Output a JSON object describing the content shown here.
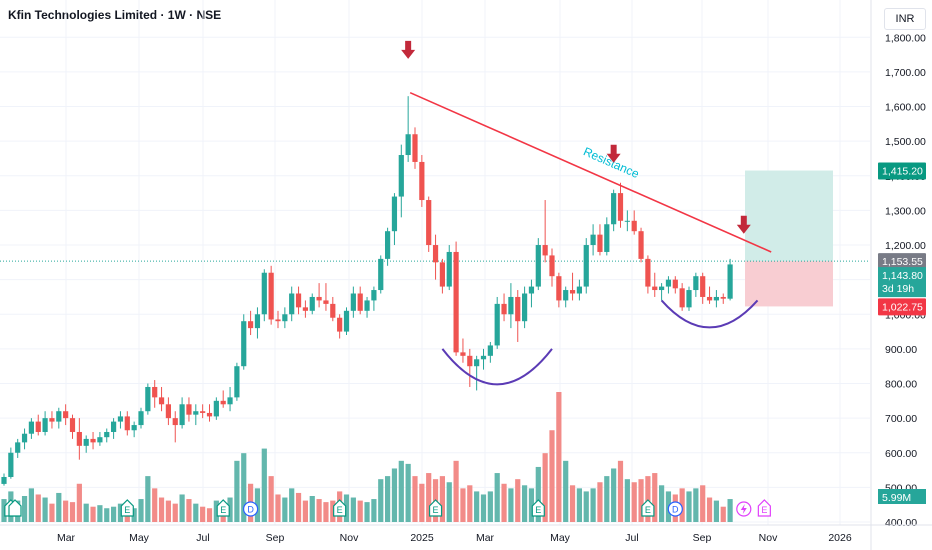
{
  "header": {
    "title": "Kfin Technologies Limited · 1W · NSE",
    "currency": "INR"
  },
  "colors": {
    "up": "#26a69a",
    "down": "#ef5350",
    "vol_up": "#63b7ad",
    "vol_down": "#f28b88",
    "resistance": "#f23645",
    "resistance_label": "#00bcd4",
    "cup": "#5b3bb5",
    "arrow": "#c2293a",
    "target_zone": "#d1ece8",
    "stop_zone": "#f8cdd2"
  },
  "chart_data": {
    "type": "candlestick",
    "interval": "1W",
    "ylim": [
      400,
      1850
    ],
    "x_tick_labels": [
      "Mar",
      "May",
      "Jul",
      "Sep",
      "Nov",
      "2025",
      "Mar",
      "May",
      "Jul",
      "Sep",
      "Nov",
      "2026"
    ],
    "y_tick_labels": [
      "1,800.00",
      "1,700.00",
      "1,600.00",
      "1,500.00",
      "1,400.00",
      "1,300.00",
      "1,200.00",
      "1,100.00",
      "1,000.00",
      "900.00",
      "800.00",
      "700.00",
      "600.00",
      "500.00",
      "400.00"
    ],
    "candles": [
      [
        510,
        540,
        505,
        530,
        15
      ],
      [
        530,
        615,
        525,
        600,
        20
      ],
      [
        600,
        640,
        585,
        630,
        14
      ],
      [
        630,
        670,
        610,
        655,
        17
      ],
      [
        655,
        700,
        640,
        690,
        22
      ],
      [
        690,
        710,
        650,
        660,
        18
      ],
      [
        660,
        720,
        650,
        700,
        16
      ],
      [
        700,
        720,
        670,
        690,
        12
      ],
      [
        690,
        730,
        670,
        720,
        19
      ],
      [
        720,
        740,
        680,
        700,
        14
      ],
      [
        700,
        710,
        640,
        660,
        13
      ],
      [
        660,
        700,
        580,
        620,
        25
      ],
      [
        620,
        650,
        600,
        640,
        12
      ],
      [
        640,
        660,
        610,
        630,
        10
      ],
      [
        630,
        660,
        620,
        645,
        11
      ],
      [
        645,
        670,
        630,
        660,
        9
      ],
      [
        660,
        700,
        640,
        690,
        10
      ],
      [
        690,
        720,
        670,
        705,
        12
      ],
      [
        705,
        720,
        650,
        665,
        13
      ],
      [
        665,
        690,
        645,
        680,
        9
      ],
      [
        680,
        730,
        670,
        720,
        15
      ],
      [
        720,
        800,
        710,
        790,
        30
      ],
      [
        790,
        810,
        730,
        760,
        22
      ],
      [
        760,
        790,
        720,
        740,
        16
      ],
      [
        740,
        760,
        680,
        700,
        14
      ],
      [
        700,
        720,
        630,
        680,
        12
      ],
      [
        680,
        760,
        670,
        740,
        18
      ],
      [
        740,
        760,
        690,
        710,
        15
      ],
      [
        710,
        740,
        680,
        720,
        12
      ],
      [
        720,
        740,
        700,
        715,
        10
      ],
      [
        715,
        740,
        690,
        705,
        9
      ],
      [
        705,
        760,
        695,
        750,
        14
      ],
      [
        750,
        780,
        730,
        740,
        13
      ],
      [
        740,
        790,
        720,
        760,
        16
      ],
      [
        760,
        860,
        750,
        850,
        40
      ],
      [
        850,
        1000,
        840,
        980,
        45
      ],
      [
        980,
        1010,
        940,
        960,
        25
      ],
      [
        960,
        1020,
        930,
        1000,
        22
      ],
      [
        1000,
        1130,
        980,
        1120,
        48
      ],
      [
        1120,
        1140,
        970,
        985,
        30
      ],
      [
        985,
        1010,
        960,
        980,
        18
      ],
      [
        980,
        1020,
        960,
        1000,
        16
      ],
      [
        1000,
        1080,
        980,
        1060,
        22
      ],
      [
        1060,
        1080,
        1000,
        1020,
        19
      ],
      [
        1020,
        1040,
        990,
        1010,
        14
      ],
      [
        1010,
        1060,
        1000,
        1050,
        17
      ],
      [
        1050,
        1090,
        1020,
        1040,
        15
      ],
      [
        1040,
        1090,
        1010,
        1030,
        13
      ],
      [
        1030,
        1050,
        980,
        990,
        14
      ],
      [
        990,
        1000,
        930,
        950,
        20
      ],
      [
        950,
        1020,
        940,
        1010,
        18
      ],
      [
        1010,
        1080,
        990,
        1060,
        16
      ],
      [
        1060,
        1080,
        1000,
        1010,
        14
      ],
      [
        1010,
        1050,
        990,
        1040,
        13
      ],
      [
        1040,
        1080,
        1010,
        1070,
        15
      ],
      [
        1070,
        1170,
        1060,
        1160,
        28
      ],
      [
        1160,
        1250,
        1140,
        1240,
        30
      ],
      [
        1240,
        1350,
        1200,
        1340,
        35
      ],
      [
        1340,
        1490,
        1280,
        1460,
        40
      ],
      [
        1460,
        1630,
        1440,
        1520,
        38
      ],
      [
        1520,
        1540,
        1420,
        1440,
        30
      ],
      [
        1440,
        1460,
        1310,
        1330,
        25
      ],
      [
        1330,
        1340,
        1180,
        1200,
        32
      ],
      [
        1200,
        1230,
        1100,
        1150,
        28
      ],
      [
        1150,
        1160,
        1060,
        1080,
        30
      ],
      [
        1080,
        1200,
        1070,
        1180,
        26
      ],
      [
        1180,
        1210,
        880,
        890,
        40
      ],
      [
        890,
        930,
        860,
        880,
        22
      ],
      [
        880,
        900,
        790,
        850,
        24
      ],
      [
        850,
        880,
        780,
        870,
        20
      ],
      [
        870,
        900,
        840,
        880,
        18
      ],
      [
        880,
        920,
        860,
        910,
        20
      ],
      [
        910,
        1050,
        900,
        1030,
        32
      ],
      [
        1030,
        1060,
        980,
        1000,
        25
      ],
      [
        1000,
        1090,
        960,
        1050,
        22
      ],
      [
        1050,
        1070,
        920,
        980,
        28
      ],
      [
        980,
        1080,
        960,
        1060,
        24
      ],
      [
        1060,
        1100,
        1020,
        1080,
        22
      ],
      [
        1080,
        1220,
        1070,
        1200,
        36
      ],
      [
        1200,
        1330,
        1150,
        1170,
        45
      ],
      [
        1170,
        1190,
        1080,
        1110,
        60
      ],
      [
        1110,
        1120,
        1020,
        1040,
        85
      ],
      [
        1040,
        1080,
        1020,
        1070,
        40
      ],
      [
        1070,
        1120,
        1040,
        1060,
        24
      ],
      [
        1060,
        1100,
        1040,
        1080,
        22
      ],
      [
        1080,
        1220,
        1060,
        1200,
        20
      ],
      [
        1200,
        1260,
        1170,
        1230,
        22
      ],
      [
        1230,
        1260,
        1170,
        1180,
        26
      ],
      [
        1180,
        1280,
        1170,
        1260,
        30
      ],
      [
        1260,
        1360,
        1240,
        1350,
        35
      ],
      [
        1350,
        1380,
        1250,
        1270,
        40
      ],
      [
        1270,
        1300,
        1240,
        1270,
        28
      ],
      [
        1270,
        1300,
        1230,
        1240,
        26
      ],
      [
        1240,
        1250,
        1150,
        1160,
        28
      ],
      [
        1160,
        1170,
        1060,
        1080,
        30
      ],
      [
        1080,
        1120,
        1050,
        1070,
        32
      ],
      [
        1070,
        1090,
        1040,
        1080,
        24
      ],
      [
        1080,
        1110,
        1060,
        1100,
        20
      ],
      [
        1100,
        1110,
        1060,
        1075,
        18
      ],
      [
        1075,
        1090,
        1010,
        1020,
        22
      ],
      [
        1020,
        1080,
        1010,
        1070,
        20
      ],
      [
        1070,
        1120,
        1050,
        1110,
        22
      ],
      [
        1110,
        1120,
        1030,
        1050,
        24
      ],
      [
        1050,
        1080,
        1030,
        1040,
        16
      ],
      [
        1040,
        1070,
        1020,
        1050,
        14
      ],
      [
        1050,
        1060,
        1030,
        1045,
        10
      ],
      [
        1045,
        1160,
        1040,
        1144,
        15
      ]
    ],
    "volume_label": "5.99M",
    "annotations": {
      "resistance_label": "Resistance"
    },
    "price_badges": {
      "target": "1,415.20",
      "entry": "1,153.55",
      "last": "1,143.80",
      "countdown": "3d 19h",
      "stop": "1,022.75"
    },
    "levels": {
      "target": 1415.2,
      "entry": 1153.55,
      "stop": 1022.75
    },
    "resistance_line": {
      "from_week": 59,
      "from_price": 1640,
      "to_week": 112,
      "to_price": 1180
    },
    "cups": [
      {
        "start_week": 64,
        "end_week": 80,
        "low": 795,
        "top": 900
      },
      {
        "start_week": 96,
        "end_week": 110,
        "low": 960,
        "top": 1040
      }
    ],
    "arrows_week": [
      {
        "week": 59,
        "price": 1755
      },
      {
        "week": 89,
        "price": 1455
      },
      {
        "week": 108,
        "price": 1250
      }
    ],
    "events": [
      {
        "week": 1,
        "type": "E"
      },
      {
        "week": 18,
        "type": "E"
      },
      {
        "week": 32,
        "type": "E"
      },
      {
        "week": 36,
        "type": "D"
      },
      {
        "week": 49,
        "type": "E"
      },
      {
        "week": 63,
        "type": "E"
      },
      {
        "week": 78,
        "type": "E"
      },
      {
        "week": 94,
        "type": "E"
      },
      {
        "week": 98,
        "type": "D"
      },
      {
        "week": 108,
        "type": "S"
      },
      {
        "week": 111,
        "type": "E"
      }
    ]
  }
}
